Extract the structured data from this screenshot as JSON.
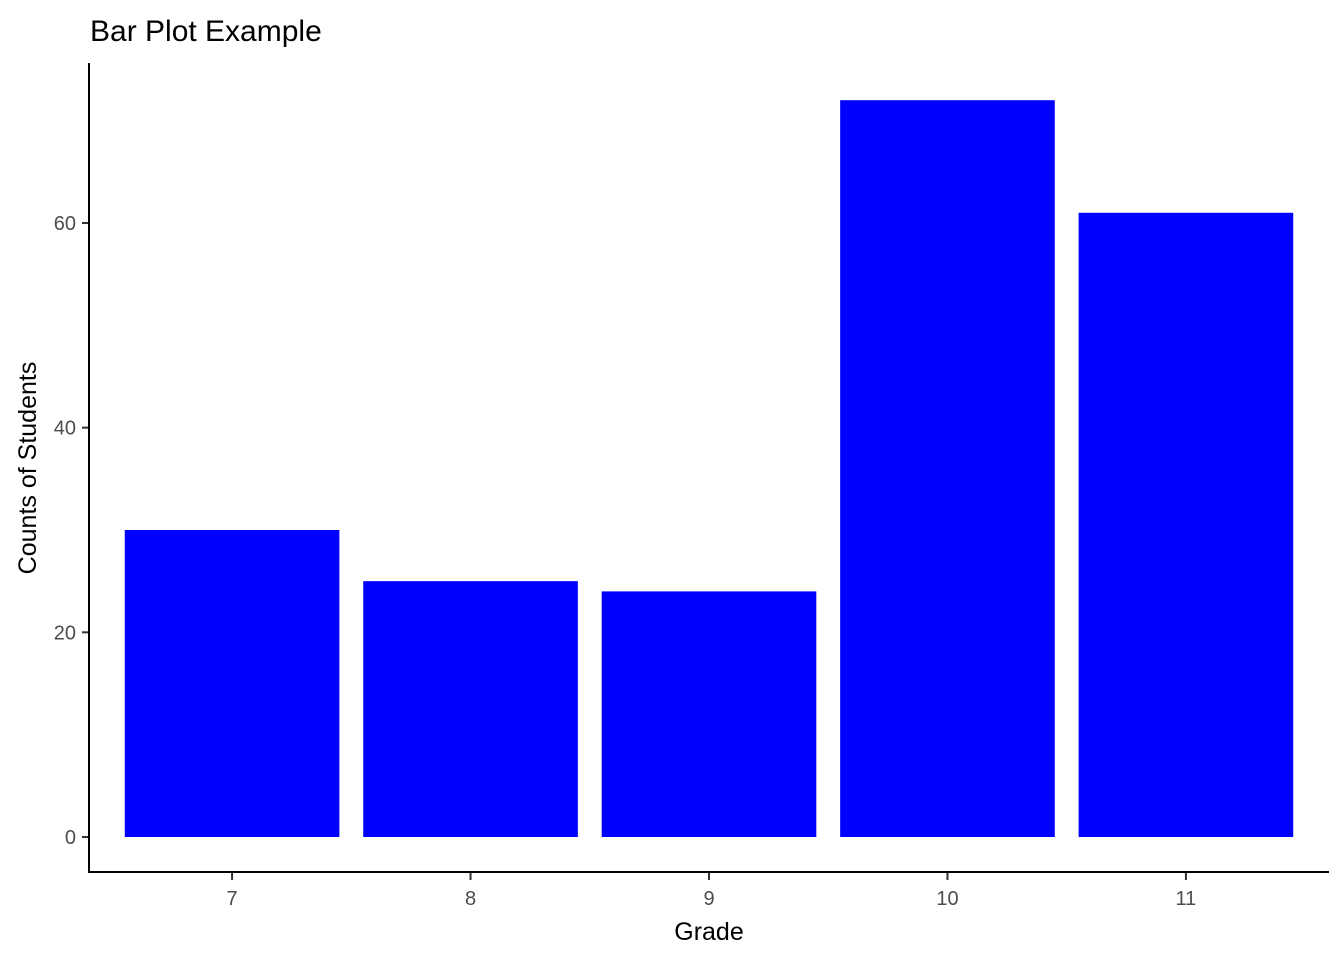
{
  "chart_data": {
    "type": "bar",
    "title": "Bar Plot Example",
    "xlabel": "Grade",
    "ylabel": "Counts of Students",
    "categories": [
      "7",
      "8",
      "9",
      "10",
      "11"
    ],
    "values": [
      30,
      25,
      24,
      72,
      61
    ],
    "yticks": [
      0,
      20,
      40,
      60
    ],
    "ylim": [
      0,
      75.6
    ],
    "grid": false,
    "bar_color": "#0000ff"
  }
}
